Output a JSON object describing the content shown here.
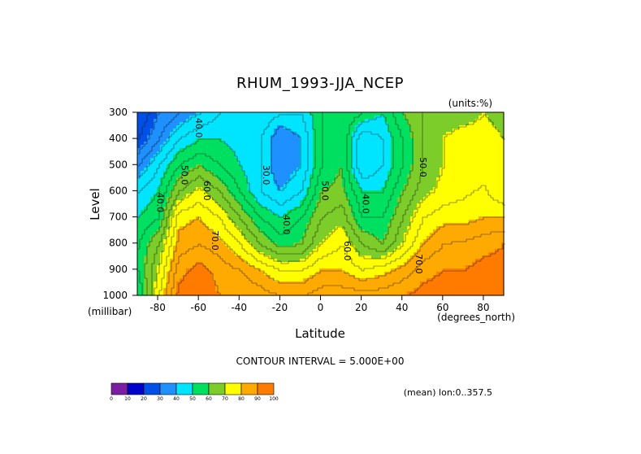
{
  "chart_data": {
    "type": "heatmap",
    "title": "RHUM_1993-JJA_NCEP",
    "units_label": "(units:%)",
    "xlabel": "Latitude",
    "ylabel": "Level",
    "x_units": "(degrees_north)",
    "y_units": "(millibar)",
    "xlim": [
      -90,
      90
    ],
    "ylim": [
      1000,
      300
    ],
    "x_ticks": [
      "-80",
      "-60",
      "-40",
      "-20",
      "0",
      "20",
      "40",
      "60",
      "80"
    ],
    "y_ticks": [
      "300",
      "400",
      "500",
      "600",
      "700",
      "800",
      "900",
      "1000"
    ],
    "contour_interval_text": "CONTOUR INTERVAL = 5.000E+00",
    "mean_text": "(mean) lon:0..357.5",
    "colorbar": {
      "labels": [
        "0",
        "10",
        "20",
        "30",
        "40",
        "50",
        "60",
        "70",
        "80",
        "90",
        "100"
      ],
      "colors": [
        "#7b1fa2",
        "#0000cd",
        "#0050e8",
        "#1e90ff",
        "#00e5ff",
        "#00e060",
        "#7ccd2a",
        "#ffff00",
        "#ffaa00",
        "#ff7b00",
        "#ff2020",
        "#ff0000"
      ]
    },
    "levels": [
      300,
      400,
      500,
      600,
      700,
      800,
      900,
      1000
    ],
    "latitudes": [
      -90,
      -80,
      -70,
      -60,
      -50,
      -40,
      -30,
      -20,
      -10,
      0,
      10,
      20,
      30,
      40,
      50,
      60,
      70,
      80,
      90
    ],
    "values": [
      [
        10,
        20,
        25,
        30,
        35,
        38,
        40,
        35,
        35,
        45,
        50,
        45,
        40,
        50,
        55,
        58,
        58,
        60,
        58
      ],
      [
        15,
        25,
        35,
        40,
        40,
        38,
        35,
        25,
        30,
        45,
        50,
        30,
        35,
        45,
        55,
        60,
        62,
        62,
        60
      ],
      [
        25,
        35,
        45,
        50,
        45,
        40,
        35,
        25,
        30,
        45,
        50,
        30,
        35,
        45,
        55,
        60,
        62,
        62,
        62
      ],
      [
        35,
        40,
        55,
        62,
        55,
        45,
        35,
        30,
        35,
        50,
        52,
        40,
        40,
        50,
        58,
        62,
        64,
        66,
        60
      ],
      [
        40,
        45,
        68,
        70,
        65,
        55,
        45,
        40,
        45,
        55,
        58,
        45,
        45,
        55,
        65,
        68,
        68,
        70,
        70
      ],
      [
        45,
        55,
        72,
        75,
        72,
        65,
        55,
        48,
        50,
        60,
        65,
        55,
        50,
        60,
        70,
        75,
        76,
        78,
        80
      ],
      [
        45,
        60,
        78,
        82,
        78,
        75,
        70,
        65,
        65,
        70,
        70,
        65,
        68,
        72,
        78,
        80,
        80,
        82,
        82
      ],
      [
        40,
        65,
        82,
        85,
        80,
        80,
        78,
        75,
        75,
        78,
        78,
        78,
        78,
        80,
        82,
        83,
        84,
        85,
        85
      ]
    ],
    "contour_labels": [
      {
        "text": "40.0",
        "lat": -60,
        "lev": 360
      },
      {
        "text": "50.0",
        "lat": -67,
        "lev": 540
      },
      {
        "text": "40.0",
        "lat": -79,
        "lev": 645
      },
      {
        "text": "60.0",
        "lat": -56,
        "lev": 600
      },
      {
        "text": "70.0",
        "lat": -52,
        "lev": 790
      },
      {
        "text": "30.0",
        "lat": -27,
        "lev": 540
      },
      {
        "text": "40.0",
        "lat": -17,
        "lev": 730
      },
      {
        "text": "50.0",
        "lat": 2,
        "lev": 600
      },
      {
        "text": "60.0",
        "lat": 13,
        "lev": 830
      },
      {
        "text": "40.0",
        "lat": 22,
        "lev": 650
      },
      {
        "text": "50.0",
        "lat": 50,
        "lev": 510
      },
      {
        "text": "70.0",
        "lat": 48,
        "lev": 880
      }
    ]
  }
}
